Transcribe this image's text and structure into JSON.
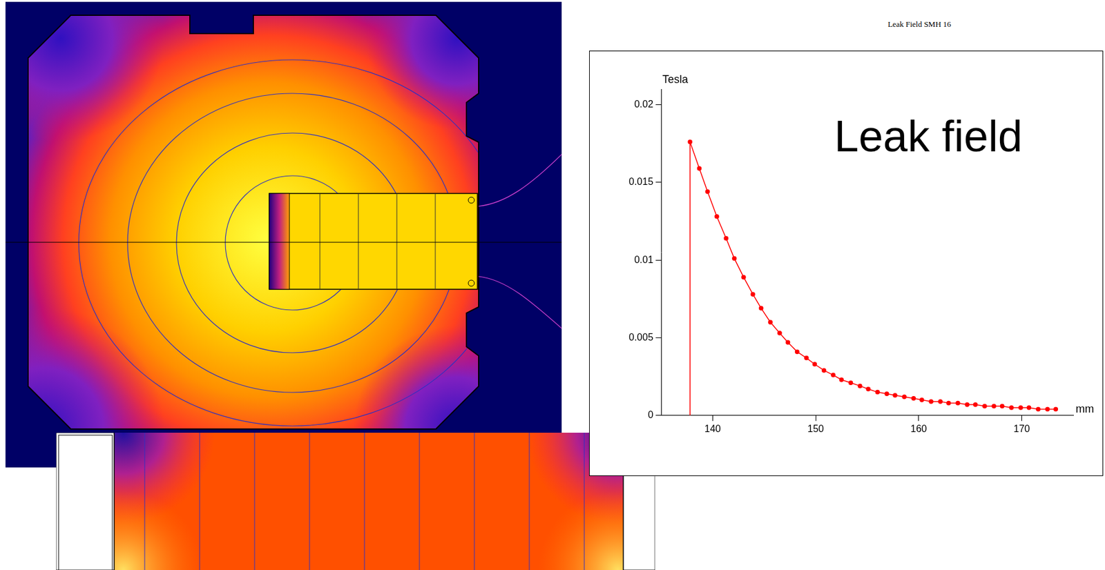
{
  "chart_data": {
    "type": "line",
    "title": "Leak Field SMH 16",
    "annotation": "Leak field",
    "y_label": "Tesla",
    "x_label": "mm",
    "x": [
      137.8,
      137.8,
      138.7,
      139.5,
      140.4,
      141.3,
      142.1,
      143.0,
      143.9,
      144.7,
      145.6,
      146.5,
      147.3,
      148.2,
      149.1,
      149.9,
      150.8,
      151.7,
      152.5,
      153.4,
      154.3,
      155.1,
      156.0,
      156.9,
      157.7,
      158.6,
      159.5,
      160.3,
      161.2,
      162.1,
      162.9,
      163.8,
      164.7,
      165.5,
      166.4,
      167.3,
      168.1,
      169.0,
      169.9,
      170.7,
      171.6,
      172.5,
      173.3
    ],
    "values": [
      0,
      0.0176,
      0.0159,
      0.0144,
      0.0128,
      0.0114,
      0.0101,
      0.0089,
      0.0078,
      0.0069,
      0.006,
      0.0053,
      0.0047,
      0.0041,
      0.0037,
      0.0033,
      0.0029,
      0.0026,
      0.0023,
      0.0021,
      0.0019,
      0.0017,
      0.0015,
      0.0014,
      0.0013,
      0.0012,
      0.0011,
      0.001,
      0.0009,
      0.0009,
      0.0008,
      0.0008,
      0.0007,
      0.0007,
      0.0006,
      0.0006,
      0.0006,
      0.0005,
      0.0005,
      0.0005,
      0.0004,
      0.0004,
      0.0004
    ],
    "color": "#ff0000",
    "marker": "circle",
    "xlim": [
      135,
      175
    ],
    "xticks": [
      140,
      150,
      160,
      170
    ],
    "ylim": [
      0,
      0.021
    ],
    "yticks": [
      0,
      0.005,
      0.01,
      0.015,
      0.02
    ],
    "grid": false
  }
}
